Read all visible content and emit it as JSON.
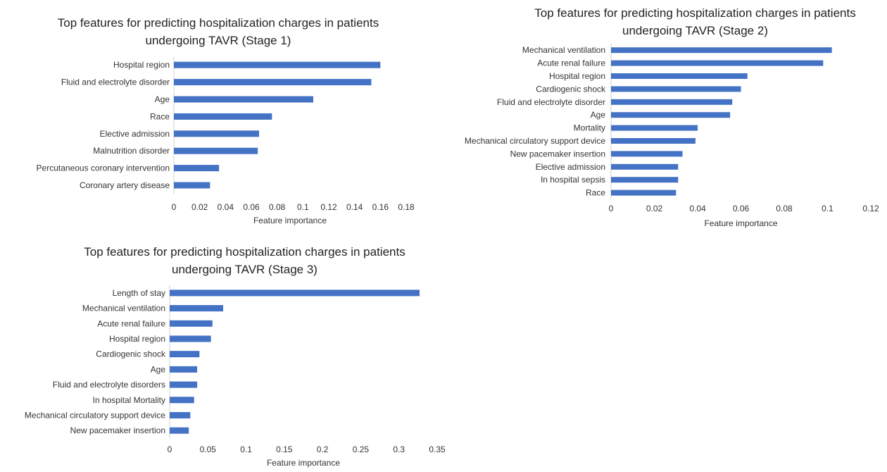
{
  "chart_data": [
    {
      "type": "bar",
      "orientation": "horizontal",
      "title": "Top features for predicting hospitalization charges in patients undergoing TAVR (Stage 1)",
      "xlabel": "Feature importance",
      "ylabel": "",
      "categories": [
        "Hospital region",
        "Fluid and electrolyte disorder",
        "Age",
        "Race",
        "Elective admission",
        "Malnutrition disorder",
        "Percutaneous coronary intervention",
        "Coronary artery disease"
      ],
      "values": [
        0.16,
        0.153,
        0.108,
        0.076,
        0.066,
        0.065,
        0.035,
        0.028
      ],
      "xlim": [
        0,
        0.18
      ],
      "xticks": [
        "0",
        "0.02",
        "0.04",
        "0.06",
        "0.08",
        "0.1",
        "0.12",
        "0.14",
        "0.16",
        "0.18"
      ],
      "bar_color": "#4472C4",
      "grid": false,
      "legend": "none"
    },
    {
      "type": "bar",
      "orientation": "horizontal",
      "title": "Top features for predicting hospitalization charges in patients undergoing TAVR (Stage 2)",
      "xlabel": "Feature importance",
      "ylabel": "",
      "categories": [
        "Mechanical ventilation",
        "Acute renal failure",
        "Hospital region",
        "Cardiogenic shock",
        "Fluid and electrolyte disorder",
        "Age",
        "Mortality",
        "Mechanical circulatory support device",
        "New pacemaker insertion",
        "Elective admission",
        "In hospital sepsis",
        "Race"
      ],
      "values": [
        0.102,
        0.098,
        0.063,
        0.06,
        0.056,
        0.055,
        0.04,
        0.039,
        0.033,
        0.031,
        0.031,
        0.03
      ],
      "xlim": [
        0,
        0.12
      ],
      "xticks": [
        "0",
        "0.02",
        "0.04",
        "0.06",
        "0.08",
        "0.1",
        "0.12"
      ],
      "bar_color": "#4472C4",
      "grid": false,
      "legend": "none"
    },
    {
      "type": "bar",
      "orientation": "horizontal",
      "title": "Top features for predicting hospitalization charges in patients undergoing TAVR (Stage 3)",
      "xlabel": "Feature importance",
      "ylabel": "",
      "categories": [
        "Length of stay",
        "Mechanical ventilation",
        "Acute renal failure",
        "Hospital region",
        "Cardiogenic shock",
        "Age",
        "Fluid and electrolyte disorders",
        "In hospital Mortality",
        "Mechanical circulatory support device",
        "New pacemaker insertion"
      ],
      "values": [
        0.327,
        0.07,
        0.056,
        0.054,
        0.039,
        0.036,
        0.036,
        0.032,
        0.027,
        0.025
      ],
      "xlim": [
        0,
        0.35
      ],
      "xticks": [
        "0",
        "0.05",
        "0.1",
        "0.15",
        "0.2",
        "0.25",
        "0.3",
        "0.35"
      ],
      "bar_color": "#4472C4",
      "grid": false,
      "legend": "none"
    }
  ]
}
